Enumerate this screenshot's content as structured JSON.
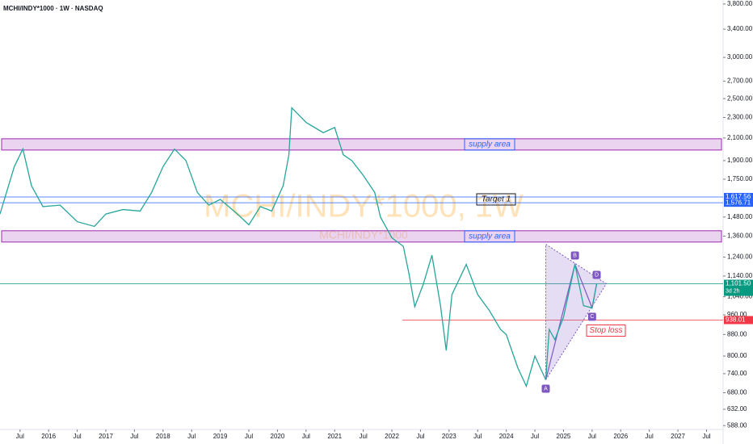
{
  "chart_data": {
    "type": "line",
    "title": "MCHI/INDY*1000 · 1W · NASDAQ",
    "watermark": "MCHI/INDY*1000, 1W",
    "watermark_sub": "MCHI/INDY*1000",
    "log_scale": true,
    "xlim": [
      2015.15,
      2027.79
    ],
    "ylim": [
      578,
      3868
    ],
    "x": [
      2015.15,
      2015.4,
      2015.55,
      2015.7,
      2015.9,
      2016.2,
      2016.5,
      2016.8,
      2017.0,
      2017.3,
      2017.6,
      2017.8,
      2018.0,
      2018.2,
      2018.4,
      2018.6,
      2018.8,
      2019.0,
      2019.3,
      2019.5,
      2019.7,
      2019.9,
      2020.1,
      2020.2,
      2020.25,
      2020.5,
      2020.8,
      2021.0,
      2021.15,
      2021.3,
      2021.5,
      2021.7,
      2021.8,
      2022.0,
      2022.2,
      2022.3,
      2022.4,
      2022.55,
      2022.7,
      2022.85,
      2022.95,
      2023.05,
      2023.3,
      2023.5,
      2023.7,
      2023.9,
      2024.0,
      2024.2,
      2024.35,
      2024.5,
      2024.69,
      2024.75,
      2024.85,
      2025.0,
      2025.2,
      2025.35,
      2025.5,
      2025.58
    ],
    "series": [
      {
        "color": "#26a69a",
        "values": [
          1500,
          1850,
          2000,
          1700,
          1550,
          1560,
          1450,
          1420,
          1500,
          1530,
          1520,
          1650,
          1850,
          2000,
          1900,
          1650,
          1560,
          1600,
          1500,
          1430,
          1550,
          1520,
          1700,
          1950,
          2400,
          2250,
          2150,
          2200,
          1950,
          1900,
          1780,
          1650,
          1480,
          1350,
          1300,
          1150,
          995,
          1100,
          1250,
          1000,
          820,
          1050,
          1200,
          1050,
          980,
          900,
          880,
          760,
          700,
          800,
          720,
          900,
          860,
          950,
          1200,
          1000,
          990,
          1101.5
        ]
      }
    ],
    "xticks": [
      {
        "value": 2015.5,
        "label": "Jul"
      },
      2016,
      {
        "value": 2016.5,
        "label": "Jul"
      },
      2017,
      {
        "value": 2017.5,
        "label": "Jul"
      },
      2018,
      {
        "value": 2018.5,
        "label": "Jul"
      },
      2019,
      {
        "value": 2019.5,
        "label": "Jul"
      },
      2020,
      {
        "value": 2020.5,
        "label": "Jul"
      },
      2021,
      {
        "value": 2021.5,
        "label": "Jul"
      },
      2022,
      {
        "value": 2022.5,
        "label": "Jul"
      },
      2023,
      {
        "value": 2023.5,
        "label": "Jul"
      },
      2024,
      {
        "value": 2024.5,
        "label": "Jul"
      },
      2025,
      {
        "value": 2025.5,
        "label": "Jul"
      },
      2026,
      {
        "value": 2026.5,
        "label": "Jul"
      },
      2027,
      {
        "value": 2027.5,
        "label": "Jul"
      }
    ],
    "yticks": [
      {
        "value": 588,
        "label": "588.00"
      },
      {
        "value": 632,
        "label": "632.00"
      },
      {
        "value": 680,
        "label": "680.00"
      },
      {
        "value": 740,
        "label": "740.00"
      },
      {
        "value": 800,
        "label": "800.00"
      },
      {
        "value": 880,
        "label": "880.00"
      },
      {
        "value": 960,
        "label": "960.00"
      },
      {
        "value": 1040,
        "label": "1,040.00"
      },
      {
        "value": 1140,
        "label": "1,140.00"
      },
      {
        "value": 1240,
        "label": "1,240.00"
      },
      {
        "value": 1360,
        "label": "1,360.00"
      },
      {
        "value": 1480,
        "label": "1,480.00"
      },
      {
        "value": 1750,
        "label": "1,750.00"
      },
      {
        "value": 1900,
        "label": "1,900.00"
      },
      {
        "value": 2100,
        "label": "2,100.00"
      },
      {
        "value": 2300,
        "label": "2,300.00"
      },
      {
        "value": 2500,
        "label": "2,500.00"
      },
      {
        "value": 2700,
        "label": "2,700.00"
      },
      {
        "value": 3000,
        "label": "3,000.00"
      },
      {
        "value": 3400,
        "label": "3,400.00"
      },
      {
        "value": 3800,
        "label": "3,800.00"
      }
    ],
    "zones": [
      {
        "low": 1991,
        "high": 2093,
        "label": "supply area"
      },
      {
        "low": 1325,
        "high": 1393,
        "label": "supply area"
      }
    ],
    "levels": [
      {
        "value": 1617.56,
        "label": "1,617.56",
        "color": "#2962ff",
        "note": "Target 1"
      },
      {
        "value": 1576.71,
        "label": "1,576.71",
        "color": "#2962ff"
      },
      {
        "value": 1101.5,
        "label": "1,101.50",
        "color": "#089981",
        "sub": "3d 2h"
      },
      {
        "value": 938.01,
        "label": "938.01",
        "color": "#f23645",
        "note": "Stop loss"
      }
    ],
    "pattern": [
      {
        "label": "A",
        "x": 2024.69,
        "value": 720
      },
      {
        "label": "B",
        "x": 2025.2,
        "value": 1200
      },
      {
        "label": "C",
        "x": 2025.5,
        "value": 990
      },
      {
        "label": "D",
        "x": 2025.58,
        "value": 1101.5
      }
    ]
  }
}
